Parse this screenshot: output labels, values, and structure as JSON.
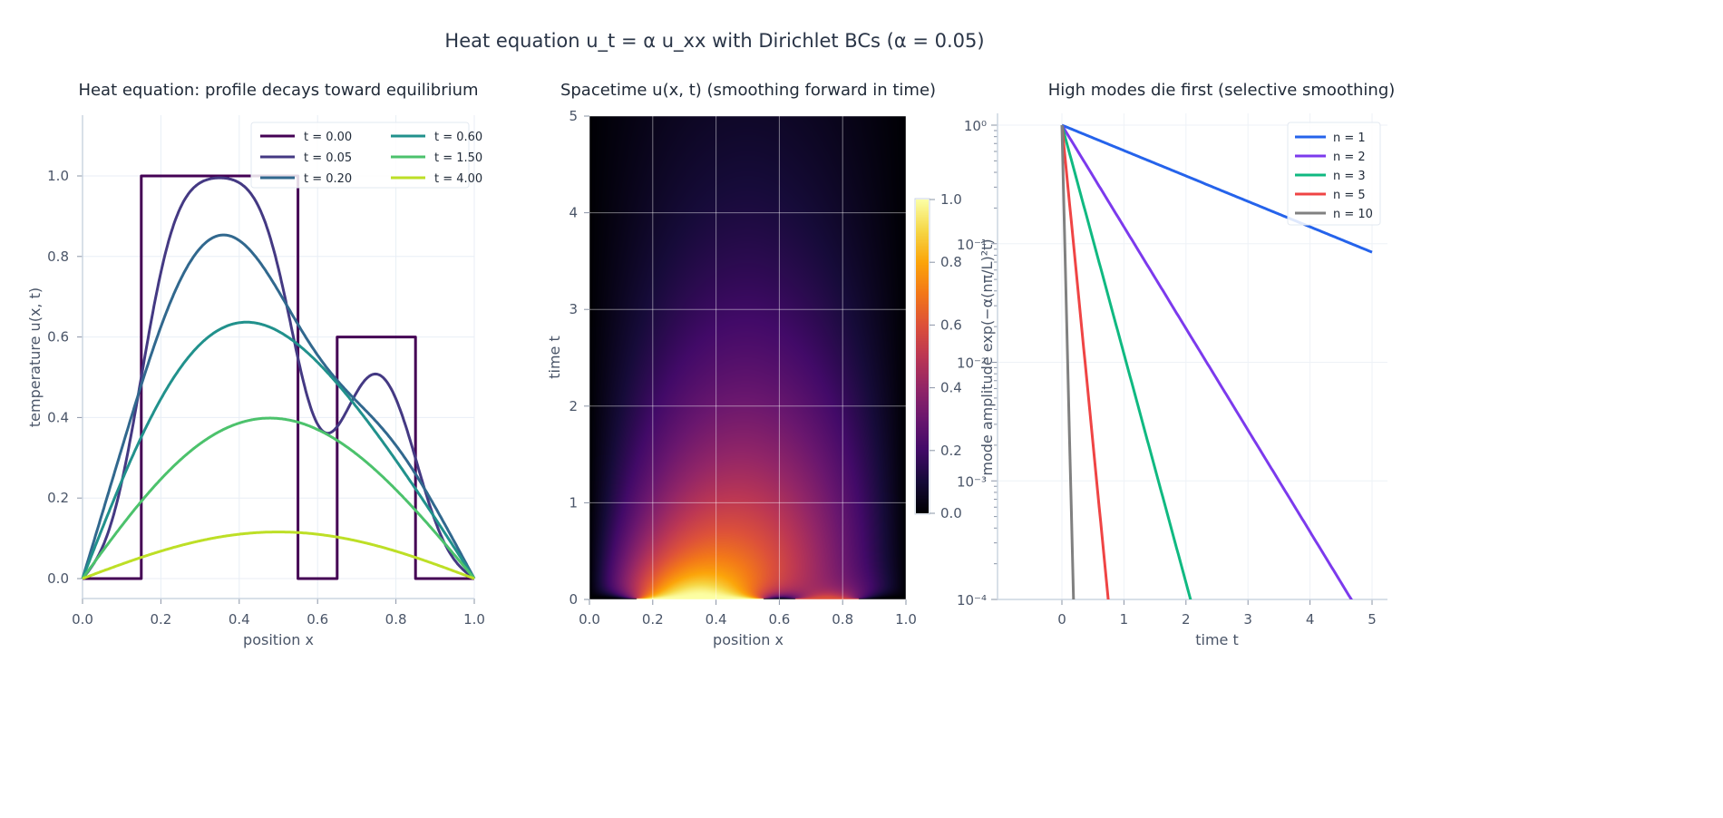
{
  "title": "Heat equation  u_t = α u_xx  with Dirichlet BCs (α = 0.05)",
  "chart_data": [
    {
      "type": "line",
      "title": "Heat equation: profile decays toward equilibrium",
      "xlabel": "position  x",
      "ylabel": "temperature  u(x, t)",
      "xlim": [
        0,
        1
      ],
      "ylim": [
        -0.05,
        1.15
      ],
      "xticks": [
        "0.0",
        "0.2",
        "0.4",
        "0.6",
        "0.8",
        "1.0"
      ],
      "yticks": [
        "0.0",
        "0.2",
        "0.4",
        "0.6",
        "0.8",
        "1.0"
      ],
      "alpha": 0.05,
      "L": 1,
      "initial_condition": [
        {
          "x_from": 0.15,
          "x_to": 0.55,
          "value": 1.0
        },
        {
          "x_from": 0.65,
          "x_to": 0.85,
          "value": 0.6
        }
      ],
      "grid": true,
      "legend_position": "top-right",
      "series": [
        {
          "name": "t = 0.00",
          "t": 0.0,
          "color": "#440154"
        },
        {
          "name": "t = 0.05",
          "t": 0.05,
          "color": "#443983"
        },
        {
          "name": "t = 0.20",
          "t": 0.2,
          "color": "#31688e"
        },
        {
          "name": "t = 0.60",
          "t": 0.6,
          "color": "#21918c"
        },
        {
          "name": "t = 1.50",
          "t": 1.5,
          "color": "#4cc26c"
        },
        {
          "name": "t = 4.00",
          "t": 4.0,
          "color": "#bddf26"
        }
      ]
    },
    {
      "type": "heatmap",
      "title": "Spacetime  u(x, t)  (smoothing forward in time)",
      "xlabel": "position  x",
      "ylabel": "time  t",
      "xlim": [
        0,
        1
      ],
      "ylim": [
        0,
        5
      ],
      "xticks": [
        "0.0",
        "0.2",
        "0.4",
        "0.6",
        "0.8",
        "1.0"
      ],
      "yticks": [
        "0",
        "1",
        "2",
        "3",
        "4",
        "5"
      ],
      "colormap": "inferno",
      "clim": [
        0,
        1
      ],
      "colorbar_ticks": [
        "0.0",
        "0.2",
        "0.4",
        "0.6",
        "0.8",
        "1.0"
      ],
      "grid": true
    },
    {
      "type": "line",
      "title": "High modes die first  (selective smoothing)",
      "xlabel": "time  t",
      "ylabel": "mode amplitude  exp(−α(nπ/L)²t)",
      "yscale": "log",
      "xlim": [
        -0.25,
        5.25
      ],
      "ylim": [
        0.0001,
        1.25
      ],
      "xticks": [
        "0",
        "1",
        "2",
        "3",
        "4",
        "5"
      ],
      "yticks": [
        "10⁰",
        "10⁻¹",
        "10⁻²",
        "10⁻³",
        "10⁻⁴"
      ],
      "t_range": [
        0,
        5
      ],
      "legend_position": "top-right",
      "grid": true,
      "series": [
        {
          "name": "n = 1",
          "n": 1,
          "color": "#2563eb"
        },
        {
          "name": "n = 2",
          "n": 2,
          "color": "#7c3aed"
        },
        {
          "name": "n = 3",
          "n": 3,
          "color": "#10b981"
        },
        {
          "name": "n = 5",
          "n": 5,
          "color": "#ef4444"
        },
        {
          "name": "n = 10",
          "n": 10,
          "color": "#808080"
        }
      ]
    }
  ]
}
